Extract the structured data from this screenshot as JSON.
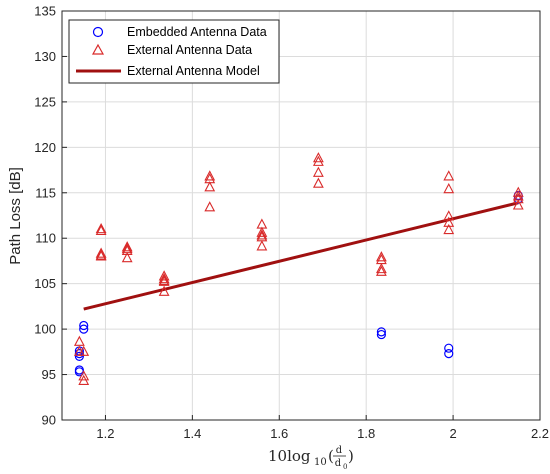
{
  "chart_data": {
    "type": "scatter",
    "x_axis": {
      "min": 1.1,
      "max": 2.2,
      "ticks": [
        1.2,
        1.4,
        1.6,
        1.8,
        2.0,
        2.2
      ],
      "tick_labels": [
        "1.2",
        "1.4",
        "1.6",
        "1.8",
        "2",
        "2.2"
      ],
      "label_prefix": "10log",
      "label_subscript": "10",
      "label_numerator": "d",
      "label_denominator": "d",
      "label_denominator_subscript": "0"
    },
    "y_axis": {
      "min": 90,
      "max": 135,
      "ticks": [
        90,
        95,
        100,
        105,
        110,
        115,
        120,
        125,
        130,
        135
      ],
      "tick_labels": [
        "90",
        "95",
        "100",
        "105",
        "110",
        "115",
        "120",
        "125",
        "130",
        "135"
      ],
      "label": "Path Loss [dB]"
    },
    "grid": true,
    "legend_position": "top-left",
    "series": [
      {
        "name": "Embedded Antenna Data",
        "marker": "circle",
        "color": "#0000ff",
        "points": [
          [
            1.14,
            95.5
          ],
          [
            1.14,
            95.3
          ],
          [
            1.14,
            97.0
          ],
          [
            1.14,
            97.3
          ],
          [
            1.14,
            97.6
          ],
          [
            1.15,
            100.0
          ],
          [
            1.15,
            100.4
          ],
          [
            1.835,
            99.4
          ],
          [
            1.835,
            99.7
          ],
          [
            1.99,
            97.3
          ],
          [
            1.99,
            97.9
          ],
          [
            2.15,
            114.3
          ],
          [
            2.15,
            114.7
          ]
        ]
      },
      {
        "name": "External Antenna Data",
        "marker": "triangle",
        "color": "#d92b2b",
        "points": [
          [
            1.14,
            98.6
          ],
          [
            1.14,
            97.5
          ],
          [
            1.15,
            97.5
          ],
          [
            1.15,
            94.8
          ],
          [
            1.15,
            94.3
          ],
          [
            1.19,
            111.0
          ],
          [
            1.19,
            110.8
          ],
          [
            1.19,
            108.3
          ],
          [
            1.19,
            108.1
          ],
          [
            1.19,
            108.0
          ],
          [
            1.25,
            109.0
          ],
          [
            1.25,
            108.8
          ],
          [
            1.25,
            108.6
          ],
          [
            1.25,
            107.8
          ],
          [
            1.335,
            105.8
          ],
          [
            1.335,
            105.5
          ],
          [
            1.335,
            105.3
          ],
          [
            1.335,
            105.2
          ],
          [
            1.335,
            104.1
          ],
          [
            1.44,
            116.8
          ],
          [
            1.44,
            116.5
          ],
          [
            1.44,
            115.6
          ],
          [
            1.44,
            113.4
          ],
          [
            1.56,
            111.5
          ],
          [
            1.56,
            110.6
          ],
          [
            1.56,
            110.3
          ],
          [
            1.56,
            110.1
          ],
          [
            1.56,
            109.1
          ],
          [
            1.69,
            118.8
          ],
          [
            1.69,
            118.4
          ],
          [
            1.69,
            117.2
          ],
          [
            1.69,
            116.0
          ],
          [
            1.835,
            107.9
          ],
          [
            1.835,
            107.6
          ],
          [
            1.835,
            106.6
          ],
          [
            1.835,
            106.3
          ],
          [
            1.99,
            116.8
          ],
          [
            1.99,
            115.4
          ],
          [
            1.99,
            112.4
          ],
          [
            1.99,
            111.7
          ],
          [
            1.99,
            110.9
          ],
          [
            2.15,
            115.0
          ],
          [
            2.15,
            114.6
          ],
          [
            2.15,
            114.3
          ],
          [
            2.15,
            113.6
          ]
        ]
      },
      {
        "name": "External Antenna Model",
        "marker": "line",
        "color": "#a01010",
        "points": [
          [
            1.15,
            102.2
          ],
          [
            2.15,
            113.9
          ]
        ]
      }
    ]
  }
}
